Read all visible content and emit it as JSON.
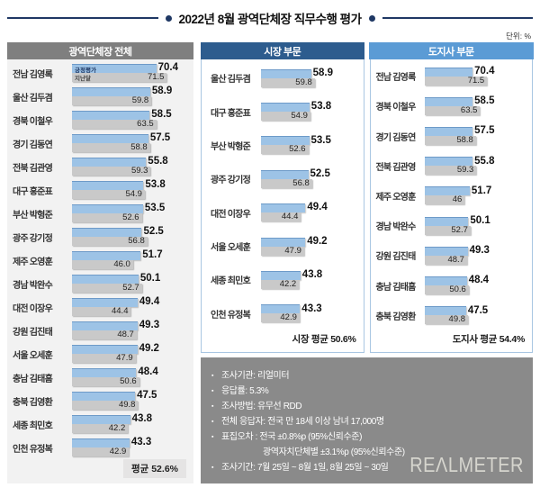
{
  "title": "2022년 8월 광역단체장 직무수행 평가",
  "unit_label": "단위: %",
  "legend": {
    "current": "긍정평가",
    "previous": "지난달"
  },
  "chart_data": [
    {
      "type": "bar",
      "orientation": "horizontal",
      "title": "광역단체장 전체",
      "xlim": [
        0,
        80
      ],
      "categories": [
        "전남 김영록",
        "울산 김두겸",
        "경북 이철우",
        "경기 김동연",
        "전북 김관영",
        "대구 홍준표",
        "부산 박형준",
        "광주 강기정",
        "제주 오영훈",
        "경남 박완수",
        "대전 이장우",
        "강원 김진태",
        "서울 오세훈",
        "충남 김태흠",
        "충북 김영환",
        "세종 최민호",
        "인천 유정복"
      ],
      "series": [
        {
          "name": "긍정평가",
          "values": [
            "70.4",
            "58.9",
            "58.5",
            "57.5",
            "55.8",
            "53.8",
            "53.5",
            "52.5",
            "51.7",
            "50.1",
            "49.4",
            "49.3",
            "49.2",
            "48.4",
            "47.5",
            "43.8",
            "43.3"
          ]
        },
        {
          "name": "지난달",
          "values": [
            "71.5",
            "59.8",
            "63.5",
            "58.8",
            "59.3",
            "54.9",
            "52.6",
            "56.8",
            "46.0",
            "52.7",
            "44.4",
            "48.7",
            "47.9",
            "50.6",
            "49.8",
            "42.2",
            "42.9"
          ]
        }
      ],
      "average_label": "평균 52.6%"
    },
    {
      "type": "bar",
      "orientation": "horizontal",
      "title": "시장 부문",
      "xlim": [
        0,
        80
      ],
      "categories": [
        "울산 김두겸",
        "대구 홍준표",
        "부산 박형준",
        "광주 강기정",
        "대전 이장우",
        "서울 오세훈",
        "세종 최민호",
        "인천 유정복"
      ],
      "series": [
        {
          "name": "긍정평가",
          "values": [
            "58.9",
            "53.8",
            "53.5",
            "52.5",
            "49.4",
            "49.2",
            "43.8",
            "43.3"
          ]
        },
        {
          "name": "지난달",
          "values": [
            "59.8",
            "54.9",
            "52.6",
            "56.8",
            "44.4",
            "47.9",
            "42.2",
            "42.9"
          ]
        }
      ],
      "average_label": "시장 평균 50.6%"
    },
    {
      "type": "bar",
      "orientation": "horizontal",
      "title": "도지사 부문",
      "xlim": [
        0,
        80
      ],
      "categories": [
        "전남 김영록",
        "경북 이철우",
        "경기 김동연",
        "전북 김관영",
        "제주 오영훈",
        "경남 박완수",
        "강원 김진태",
        "충남 김태흠",
        "충북 김영환"
      ],
      "series": [
        {
          "name": "긍정평가",
          "values": [
            "70.4",
            "58.5",
            "57.5",
            "55.8",
            "51.7",
            "50.1",
            "49.3",
            "48.4",
            "47.5"
          ]
        },
        {
          "name": "지난달",
          "values": [
            "71.5",
            "63.5",
            "58.8",
            "59.3",
            "46",
            "52.7",
            "48.7",
            "50.6",
            "49.8"
          ]
        }
      ],
      "average_label": "도지사 평균 54.4%"
    }
  ],
  "notes": {
    "lines": [
      {
        "text": "조사기관: 리얼미터",
        "indent": false
      },
      {
        "text": "응답률: 5.3%",
        "indent": false
      },
      {
        "text": "조사방법: 유무선 RDD",
        "indent": false
      },
      {
        "text": "전체 응답자: 전국 만 18세 이상 남녀 17,000명",
        "indent": false
      },
      {
        "text": "표집오차 : 전국 ±0.8%p (95%신뢰수준)",
        "indent": false
      },
      {
        "text": "광역자치단체별 ±3.1%p (95%신뢰수준)",
        "indent": true
      },
      {
        "text": "조사기간: 7월 25일 ~ 8월 1일, 8월 25일 ~ 30일",
        "indent": false
      }
    ]
  },
  "watermark": "REΛLMETER",
  "colors": {
    "accent_navy": "#1F3864",
    "header_all": "#7F7F7F",
    "header_mayor": "#2D5C8E",
    "header_governor": "#5B9BD5",
    "bar_current": "#9DC3E6",
    "bar_previous": "#C9C9C9",
    "panel_border": "#A9C6E2",
    "notes_bg": "#8A8A8A"
  }
}
